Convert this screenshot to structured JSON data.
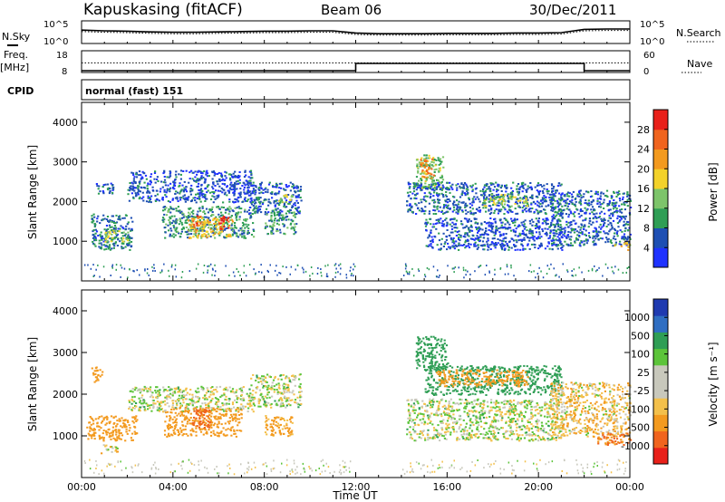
{
  "header": {
    "station": "Kapuskasing (fitACF)",
    "beam": "Beam 06",
    "date": "30/Dec/2011"
  },
  "left_labels": {
    "nsky": "N.Sky",
    "freq": "Freq.",
    "mhz": "[MHz]",
    "cpid": "CPID"
  },
  "right_labels": {
    "nsearch": "N.Search",
    "nave": "Nave"
  },
  "cpid_text": "normal (fast) 151",
  "colors": {
    "power": [
      "#1f32ff",
      "#1e4fb3",
      "#2f9e55",
      "#7dc46a",
      "#f3d22a",
      "#f39a1f",
      "#f0641e",
      "#e8201a"
    ],
    "velocity": [
      "#e8201a",
      "#f0641e",
      "#f39a1f",
      "#f3c04b",
      "#c8c8bc",
      "#c8c8bc",
      "#5cc43a",
      "#2f9e55",
      "#2f6ec2",
      "#1f3ab0"
    ]
  },
  "chart_data": [
    {
      "type": "line",
      "panel": "noise",
      "left_ticks": [
        "10^5",
        "10^0"
      ],
      "right_ticks": [
        "10^5",
        "10^0"
      ],
      "series": [
        {
          "name": "N.Sky",
          "x": [
            0,
            1,
            2,
            3,
            4,
            5,
            6,
            7,
            8,
            9,
            10,
            11,
            12,
            13,
            14,
            15,
            16,
            17,
            18,
            19,
            20,
            21,
            22,
            23,
            24
          ],
          "values": [
            3.2,
            3.0,
            2.9,
            2.7,
            2.6,
            2.6,
            2.7,
            2.8,
            2.9,
            2.9,
            3.0,
            3.0,
            2.4,
            2.2,
            2.2,
            2.2,
            2.3,
            2.3,
            2.3,
            2.4,
            2.4,
            2.5,
            3.4,
            3.5,
            3.5
          ]
        },
        {
          "name": "N.Search",
          "x": [
            0,
            1,
            2,
            3,
            4,
            5,
            6,
            7,
            8,
            9,
            10,
            11,
            12,
            13,
            14,
            15,
            16,
            17,
            18,
            19,
            20,
            21,
            22,
            23,
            24
          ],
          "values": [
            2.8,
            2.6,
            2.5,
            2.3,
            2.2,
            2.2,
            2.3,
            2.4,
            2.5,
            2.5,
            2.6,
            2.6,
            2.0,
            1.8,
            1.8,
            1.8,
            1.9,
            1.9,
            1.9,
            2.0,
            2.0,
            2.1,
            3.0,
            3.1,
            3.1
          ]
        }
      ]
    },
    {
      "type": "line",
      "panel": "frequency",
      "left_ticks": [
        "18",
        "8"
      ],
      "right_ticks": [
        "60",
        "0"
      ],
      "series": [
        {
          "name": "Freq.",
          "x": [
            0,
            12,
            12,
            22,
            22,
            24
          ],
          "values": [
            8,
            8,
            12,
            12,
            8,
            8
          ]
        },
        {
          "name": "Nave",
          "x": [
            0,
            24
          ],
          "values": [
            26,
            26
          ]
        }
      ]
    },
    {
      "type": "heatmap",
      "panel": "power",
      "ylabel": "Slant Range [km]",
      "yticks": [
        "1000",
        "2000",
        "3000",
        "4000"
      ],
      "ylim": [
        0,
        4500
      ],
      "colorbar_label": "Power [dB]",
      "colorbar_ticks": [
        "4",
        "8",
        "12",
        "16",
        "20",
        "24",
        "28"
      ],
      "clim": [
        0,
        30
      ],
      "regions": [
        {
          "t0": 0.6,
          "t1": 1.4,
          "r0": 2200,
          "r1": 2500,
          "v": 6
        },
        {
          "t0": 0.4,
          "t1": 2.2,
          "r0": 800,
          "r1": 1700,
          "v": 7
        },
        {
          "t0": 1.0,
          "t1": 2.0,
          "r0": 1000,
          "r1": 1300,
          "v": 14
        },
        {
          "t0": 2.0,
          "t1": 7.5,
          "r0": 2000,
          "r1": 2800,
          "v": 5
        },
        {
          "t0": 3.5,
          "t1": 7.5,
          "r0": 1100,
          "r1": 1900,
          "v": 9
        },
        {
          "t0": 4.6,
          "t1": 6.6,
          "r0": 1100,
          "r1": 1600,
          "v": 18
        },
        {
          "t0": 4.8,
          "t1": 5.2,
          "r0": 1300,
          "r1": 1700,
          "v": 24
        },
        {
          "t0": 6.0,
          "t1": 6.4,
          "r0": 1300,
          "r1": 1650,
          "v": 26
        },
        {
          "t0": 7.2,
          "t1": 9.6,
          "r0": 1700,
          "r1": 2500,
          "v": 6
        },
        {
          "t0": 8.0,
          "t1": 9.4,
          "r0": 1200,
          "r1": 1800,
          "v": 9
        },
        {
          "t0": 8.6,
          "t1": 9.2,
          "r0": 2000,
          "r1": 2200,
          "v": 15
        },
        {
          "t0": 14.6,
          "t1": 15.8,
          "r0": 2300,
          "r1": 3200,
          "v": 12
        },
        {
          "t0": 14.8,
          "t1": 15.4,
          "r0": 2600,
          "r1": 3100,
          "v": 22
        },
        {
          "t0": 14.2,
          "t1": 21.0,
          "r0": 1700,
          "r1": 2500,
          "v": 6
        },
        {
          "t0": 15.0,
          "t1": 21.0,
          "r0": 800,
          "r1": 1600,
          "v": 5
        },
        {
          "t0": 17.5,
          "t1": 19.5,
          "r0": 1900,
          "r1": 2200,
          "v": 14
        },
        {
          "t0": 20.5,
          "t1": 24.0,
          "r0": 900,
          "r1": 2300,
          "v": 6
        },
        {
          "t0": 23.2,
          "t1": 24.0,
          "r0": 800,
          "r1": 1000,
          "v": 18
        }
      ]
    },
    {
      "type": "heatmap",
      "panel": "velocity",
      "ylabel": "Slant Range [km]",
      "yticks": [
        "1000",
        "2000",
        "3000",
        "4000"
      ],
      "ylim": [
        0,
        4500
      ],
      "xlabel": "Time UT",
      "xticks": [
        "00:00",
        "04:00",
        "08:00",
        "12:00",
        "16:00",
        "20:00",
        "00:00"
      ],
      "xlim": [
        0,
        24
      ],
      "colorbar_label": "Velocity [m s⁻¹]",
      "colorbar_ticks": [
        "-1000",
        "-500",
        "-100",
        "-25",
        "25",
        "100",
        "500",
        "1000"
      ],
      "clim": [
        -1200,
        1200
      ],
      "regions": [
        {
          "t0": 0.4,
          "t1": 0.9,
          "r0": 2300,
          "r1": 2700,
          "v": -300
        },
        {
          "t0": 0.2,
          "t1": 2.4,
          "r0": 900,
          "r1": 1500,
          "v": -300
        },
        {
          "t0": 2.0,
          "t1": 7.5,
          "r0": 1600,
          "r1": 2200,
          "v": 10
        },
        {
          "t0": 3.6,
          "t1": 7.0,
          "r0": 1000,
          "r1": 1700,
          "v": -400
        },
        {
          "t0": 4.8,
          "t1": 5.6,
          "r0": 1200,
          "r1": 1650,
          "v": -700
        },
        {
          "t0": 7.3,
          "t1": 9.6,
          "r0": 1700,
          "r1": 2500,
          "v": 10
        },
        {
          "t0": 8.0,
          "t1": 9.2,
          "r0": 1000,
          "r1": 1500,
          "v": -150
        },
        {
          "t0": 14.6,
          "t1": 16.0,
          "r0": 2600,
          "r1": 3400,
          "v": 300
        },
        {
          "t0": 15.0,
          "t1": 21.0,
          "r0": 2000,
          "r1": 2700,
          "v": 250
        },
        {
          "t0": 15.5,
          "t1": 19.5,
          "r0": 2200,
          "r1": 2600,
          "v": -200
        },
        {
          "t0": 14.2,
          "t1": 21.0,
          "r0": 900,
          "r1": 1900,
          "v": 10
        },
        {
          "t0": 20.5,
          "t1": 24.0,
          "r0": 1000,
          "r1": 2300,
          "v": -60
        },
        {
          "t0": 22.5,
          "t1": 24.0,
          "r0": 800,
          "r1": 1100,
          "v": -500
        },
        {
          "t0": 0.8,
          "t1": 1.6,
          "r0": 600,
          "r1": 800,
          "v": -40
        }
      ]
    }
  ]
}
